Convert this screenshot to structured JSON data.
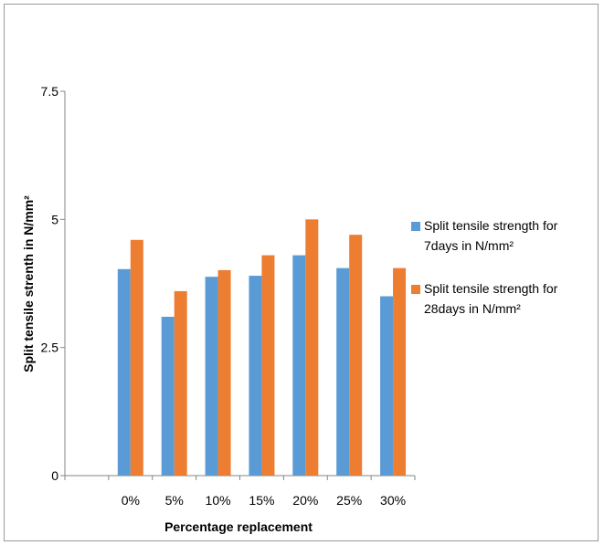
{
  "chart_data": {
    "type": "bar",
    "categories": [
      "",
      "0%",
      "5%",
      "10%",
      "15%",
      "20%",
      "25%",
      "30%"
    ],
    "series": [
      {
        "name_lines": [
          "Split tensile strength for",
          "7days  in N/mm²"
        ],
        "values": [
          null,
          4.03,
          3.1,
          3.88,
          3.9,
          4.3,
          4.05,
          3.5
        ],
        "color": "#5b9bd5"
      },
      {
        "name_lines": [
          "Split tensile strength for",
          "28days in N/mm²"
        ],
        "values": [
          null,
          4.6,
          3.6,
          4.01,
          4.3,
          5.0,
          4.7,
          4.05
        ]
      }
    ],
    "series_colors": [
      "#5b9bd5",
      "#ed7d31"
    ],
    "xlabel": "Percentage replacement",
    "ylabel": "Split tensile strenth in N/mm²",
    "ylim": [
      0,
      7.5
    ],
    "yticks": [
      {
        "value": 0,
        "label": "0"
      },
      {
        "value": 2.5,
        "label": "2.5"
      },
      {
        "value": 5,
        "label": "5"
      },
      {
        "value": 7.5,
        "label": "7.5"
      }
    ],
    "grid": false,
    "legend_position": "right"
  }
}
